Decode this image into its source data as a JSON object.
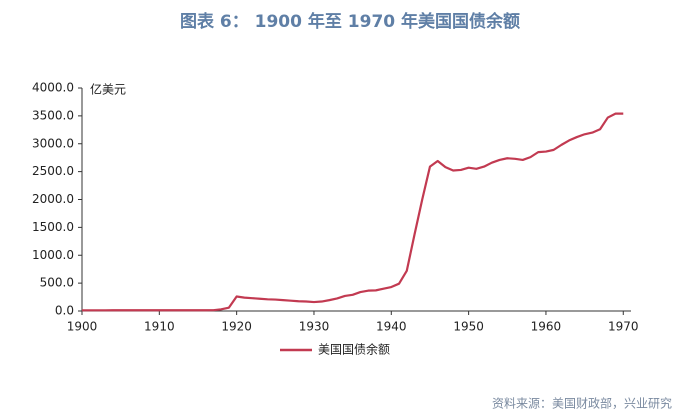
{
  "chart_data": {
    "type": "line",
    "title": "图表 6： 1900 年至 1970 年美国国债余额",
    "y_label": "亿美元",
    "source": "资料来源：美国财政部，兴业研究",
    "x": [
      1900,
      1901,
      1902,
      1903,
      1904,
      1905,
      1906,
      1907,
      1908,
      1909,
      1910,
      1911,
      1912,
      1913,
      1914,
      1915,
      1916,
      1917,
      1918,
      1919,
      1920,
      1921,
      1922,
      1923,
      1924,
      1925,
      1926,
      1927,
      1928,
      1929,
      1930,
      1931,
      1932,
      1933,
      1934,
      1935,
      1936,
      1937,
      1938,
      1939,
      1940,
      1941,
      1942,
      1943,
      1944,
      1945,
      1946,
      1947,
      1948,
      1949,
      1950,
      1951,
      1952,
      1953,
      1954,
      1955,
      1956,
      1957,
      1958,
      1959,
      1960,
      1961,
      1962,
      1963,
      1964,
      1965,
      1966,
      1967,
      1968,
      1969,
      1970
    ],
    "series": [
      {
        "name": "美国国债余额",
        "color": "#c23a51",
        "values": [
          12,
          12,
          12,
          12,
          13,
          13,
          13,
          13,
          13,
          13,
          13,
          13,
          13,
          13,
          13,
          13,
          13,
          15,
          30,
          60,
          260,
          240,
          230,
          220,
          210,
          205,
          195,
          185,
          175,
          170,
          160,
          170,
          195,
          225,
          270,
          290,
          340,
          365,
          370,
          400,
          430,
          490,
          720,
          1370,
          2000,
          2590,
          2690,
          2580,
          2520,
          2530,
          2570,
          2550,
          2590,
          2660,
          2710,
          2740,
          2730,
          2710,
          2760,
          2850,
          2860,
          2890,
          2980,
          3060,
          3120,
          3170,
          3200,
          3260,
          3470,
          3540,
          3540
        ]
      }
    ],
    "xlim": [
      1900,
      1971
    ],
    "xticks": [
      1900,
      1910,
      1920,
      1930,
      1940,
      1950,
      1960,
      1970
    ],
    "ylim": [
      0,
      4000
    ],
    "yticks": [
      {
        "value": 0,
        "label": "0.0"
      },
      {
        "value": 500,
        "label": "500.0"
      },
      {
        "value": 1000,
        "label": "1000.0"
      },
      {
        "value": 1500,
        "label": "1500.0"
      },
      {
        "value": 2000,
        "label": "2000.0"
      },
      {
        "value": 2500,
        "label": "2500.0"
      },
      {
        "value": 3000,
        "label": "3000.0"
      },
      {
        "value": 3500,
        "label": "3500.0"
      },
      {
        "value": 4000,
        "label": "4000.0"
      }
    ],
    "legend": "bottom"
  }
}
